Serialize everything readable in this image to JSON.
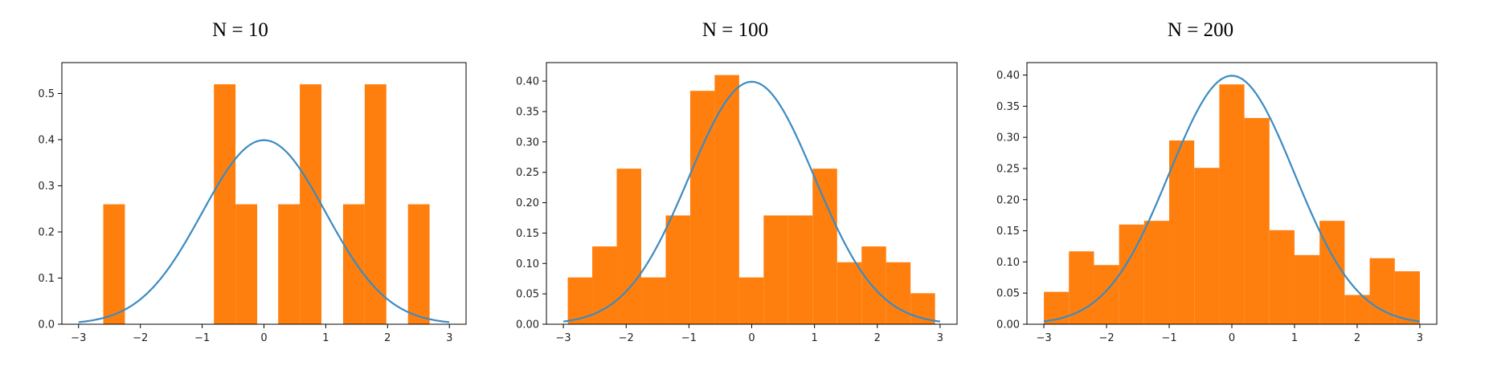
{
  "colors": {
    "bars": "#ff7f0e",
    "curve": "#3b8bc2"
  },
  "chart_data": [
    {
      "type": "bar",
      "title": "N = 10",
      "xlim": [
        -3,
        3
      ],
      "ylim": [
        0,
        0.54
      ],
      "xticks": [
        -3,
        -2,
        -1,
        0,
        1,
        2,
        3
      ],
      "xtick_labels": [
        "−3",
        "−2",
        "−1",
        "0",
        "1",
        "2",
        "3"
      ],
      "yticks": [
        0.0,
        0.1,
        0.2,
        0.3,
        0.4,
        0.5
      ],
      "ytick_labels": [
        "0.0",
        "0.1",
        "0.2",
        "0.3",
        "0.4",
        "0.5"
      ],
      "grid": false,
      "bars": [
        {
          "x0": -2.6,
          "x1": -2.25,
          "height": 0.26
        },
        {
          "x0": -0.81,
          "x1": -0.46,
          "height": 0.52
        },
        {
          "x0": -0.46,
          "x1": -0.11,
          "height": 0.26
        },
        {
          "x0": 0.23,
          "x1": 0.58,
          "height": 0.26
        },
        {
          "x0": 0.58,
          "x1": 0.93,
          "height": 0.52
        },
        {
          "x0": 1.28,
          "x1": 1.63,
          "height": 0.26
        },
        {
          "x0": 1.63,
          "x1": 1.98,
          "height": 0.52
        },
        {
          "x0": 2.33,
          "x1": 2.68,
          "height": 0.26
        }
      ],
      "curve": {
        "type": "line",
        "function": "normal_pdf",
        "mean": 0,
        "std": 1,
        "x_range": [
          -3,
          3
        ]
      }
    },
    {
      "type": "bar",
      "title": "N = 100",
      "xlim": [
        -3,
        3
      ],
      "ylim": [
        0,
        0.41
      ],
      "xticks": [
        -3,
        -2,
        -1,
        0,
        1,
        2,
        3
      ],
      "xtick_labels": [
        "−3",
        "−2",
        "−1",
        "0",
        "1",
        "2",
        "3"
      ],
      "yticks": [
        0.0,
        0.05,
        0.1,
        0.15,
        0.2,
        0.25,
        0.3,
        0.35,
        0.4
      ],
      "ytick_labels": [
        "0.00",
        "0.05",
        "0.10",
        "0.15",
        "0.20",
        "0.25",
        "0.30",
        "0.35",
        "0.40"
      ],
      "grid": false,
      "bars": [
        {
          "x0": -2.93,
          "x1": -2.54,
          "height": 0.077
        },
        {
          "x0": -2.54,
          "x1": -2.15,
          "height": 0.128
        },
        {
          "x0": -2.15,
          "x1": -1.76,
          "height": 0.256
        },
        {
          "x0": -1.76,
          "x1": -1.37,
          "height": 0.077
        },
        {
          "x0": -1.37,
          "x1": -0.98,
          "height": 0.179
        },
        {
          "x0": -0.98,
          "x1": -0.59,
          "height": 0.384
        },
        {
          "x0": -0.59,
          "x1": -0.2,
          "height": 0.41
        },
        {
          "x0": -0.2,
          "x1": 0.19,
          "height": 0.077
        },
        {
          "x0": 0.19,
          "x1": 0.58,
          "height": 0.179
        },
        {
          "x0": 0.58,
          "x1": 0.97,
          "height": 0.179
        },
        {
          "x0": 0.97,
          "x1": 1.36,
          "height": 0.256
        },
        {
          "x0": 1.36,
          "x1": 1.75,
          "height": 0.102
        },
        {
          "x0": 1.75,
          "x1": 2.14,
          "height": 0.128
        },
        {
          "x0": 2.14,
          "x1": 2.53,
          "height": 0.102
        },
        {
          "x0": 2.53,
          "x1": 2.92,
          "height": 0.051
        }
      ],
      "curve": {
        "type": "line",
        "function": "normal_pdf",
        "mean": 0,
        "std": 1,
        "x_range": [
          -3,
          3
        ]
      }
    },
    {
      "type": "bar",
      "title": "N = 200",
      "xlim": [
        -3,
        3
      ],
      "ylim": [
        0,
        0.4
      ],
      "xticks": [
        -3,
        -2,
        -1,
        0,
        1,
        2,
        3
      ],
      "xtick_labels": [
        "−3",
        "−2",
        "−1",
        "0",
        "1",
        "2",
        "3"
      ],
      "yticks": [
        0.0,
        0.05,
        0.1,
        0.15,
        0.2,
        0.25,
        0.3,
        0.35,
        0.4
      ],
      "ytick_labels": [
        "0.00",
        "0.05",
        "0.10",
        "0.15",
        "0.20",
        "0.25",
        "0.30",
        "0.35",
        "0.40"
      ],
      "grid": false,
      "bars": [
        {
          "x0": -3.0,
          "x1": -2.6,
          "height": 0.052
        },
        {
          "x0": -2.6,
          "x1": -2.2,
          "height": 0.117
        },
        {
          "x0": -2.2,
          "x1": -1.8,
          "height": 0.095
        },
        {
          "x0": -1.8,
          "x1": -1.4,
          "height": 0.16
        },
        {
          "x0": -1.4,
          "x1": -1.0,
          "height": 0.166
        },
        {
          "x0": -1.0,
          "x1": -0.6,
          "height": 0.295
        },
        {
          "x0": -0.6,
          "x1": -0.2,
          "height": 0.251
        },
        {
          "x0": -0.2,
          "x1": 0.2,
          "height": 0.385
        },
        {
          "x0": 0.2,
          "x1": 0.6,
          "height": 0.331
        },
        {
          "x0": 0.6,
          "x1": 1.0,
          "height": 0.151
        },
        {
          "x0": 1.0,
          "x1": 1.4,
          "height": 0.111
        },
        {
          "x0": 1.4,
          "x1": 1.8,
          "height": 0.166
        },
        {
          "x0": 1.8,
          "x1": 2.2,
          "height": 0.047
        },
        {
          "x0": 2.2,
          "x1": 2.6,
          "height": 0.106
        },
        {
          "x0": 2.6,
          "x1": 3.0,
          "height": 0.085
        }
      ],
      "curve": {
        "type": "line",
        "function": "normal_pdf",
        "mean": 0,
        "std": 1,
        "x_range": [
          -3,
          3
        ]
      }
    }
  ]
}
